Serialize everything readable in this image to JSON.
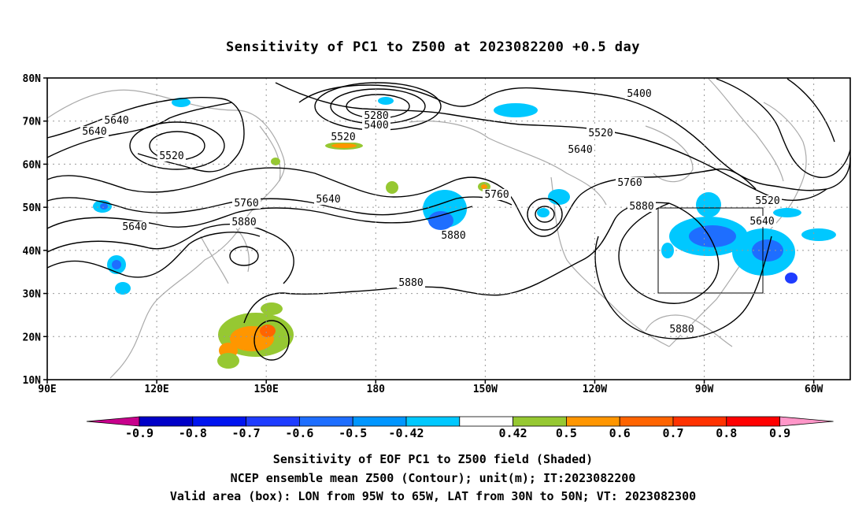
{
  "title": "Sensitivity of PC1 to Z500 at 2023082200 +0.5 day",
  "footer": {
    "line1": "Sensitivity of EOF PC1 to Z500 field (Shaded)",
    "line2": "NCEP ensemble mean Z500 (Contour); unit(m); IT:2023082200",
    "line3": "Valid area (box): LON from 95W to 65W, LAT from 30N to 50N; VT: 2023082300"
  },
  "map": {
    "lon_range": [
      90,
      310
    ],
    "lat_range": [
      10,
      80
    ],
    "lat_ticks": [
      "10N",
      "20N",
      "30N",
      "40N",
      "50N",
      "60N",
      "70N",
      "80N"
    ],
    "lon_ticks": [
      "90E",
      "120E",
      "150E",
      "180",
      "150W",
      "120W",
      "90W",
      "60W"
    ],
    "grid": "dotted",
    "valid_box": {
      "lon_west": "95W",
      "lon_east": "65W",
      "lat_south": "30N",
      "lat_north": "50N"
    },
    "contour_labels": [
      "5280",
      "5400",
      "5400",
      "5520",
      "5520",
      "5520",
      "5520",
      "5640",
      "5640",
      "5640",
      "5640",
      "5640",
      "5640",
      "5760",
      "5760",
      "5760",
      "5880",
      "5880",
      "5880",
      "5880",
      "5880"
    ]
  },
  "colorbar": {
    "labels": [
      "-0.9",
      "-0.8",
      "-0.7",
      "-0.6",
      "-0.5",
      "-0.42",
      "0.42",
      "0.5",
      "0.6",
      "0.7",
      "0.8",
      "0.9"
    ],
    "colors": [
      "#c8008c",
      "#0000c8",
      "#0014f0",
      "#1e3cff",
      "#1e6eff",
      "#0096ff",
      "#00c8ff",
      "#ffffff",
      "#96c832",
      "#ff9600",
      "#ff6400",
      "#ff3200",
      "#ff0000",
      "#ff96c8"
    ]
  },
  "colors": {
    "coast": "#aaaaaa",
    "contour": "#000000",
    "grid": "#999999"
  }
}
